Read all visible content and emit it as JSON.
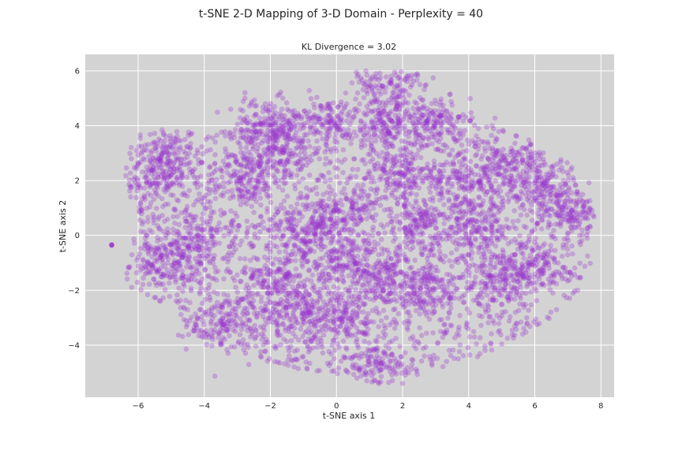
{
  "chart_data": {
    "type": "scatter",
    "suptitle": "t-SNE 2-D Mapping of 3-D Domain - Perplexity = 40",
    "title": "KL Divergence = 3.02",
    "xlabel": "t-SNE axis 1",
    "ylabel": "t-SNE axis 2",
    "xlim": [
      -7.6,
      8.4
    ],
    "ylim": [
      -5.9,
      6.6
    ],
    "xticks": [
      -6,
      -4,
      -2,
      0,
      2,
      4,
      6,
      8
    ],
    "yticks": [
      -4,
      -2,
      0,
      2,
      4,
      6
    ],
    "xtick_labels": [
      "−6",
      "−4",
      "−2",
      "0",
      "2",
      "4",
      "6",
      "8"
    ],
    "ytick_labels": [
      "−4",
      "−2",
      "0",
      "2",
      "4",
      "6"
    ],
    "grid": true,
    "background": "#d3d3d3",
    "point_color": "#9932cc",
    "point_alpha": 0.3,
    "cluster_centers": [
      {
        "x": -5.2,
        "y": 3.0
      },
      {
        "x": -5.6,
        "y": 2.0
      },
      {
        "x": -5.3,
        "y": -1.0
      },
      {
        "x": -4.2,
        "y": -0.3
      },
      {
        "x": -3.4,
        "y": -3.2
      },
      {
        "x": -2.2,
        "y": 4.0
      },
      {
        "x": -2.8,
        "y": 2.0
      },
      {
        "x": -1.8,
        "y": 3.0
      },
      {
        "x": -0.5,
        "y": 4.2
      },
      {
        "x": -1.0,
        "y": 0.2
      },
      {
        "x": -1.8,
        "y": -1.6
      },
      {
        "x": -1.2,
        "y": -2.8
      },
      {
        "x": 0.2,
        "y": -0.8
      },
      {
        "x": 0.2,
        "y": 0.8
      },
      {
        "x": 0.2,
        "y": -3.0
      },
      {
        "x": 1.5,
        "y": -1.5
      },
      {
        "x": 1.8,
        "y": 2.2
      },
      {
        "x": 1.5,
        "y": 4.0
      },
      {
        "x": 2.5,
        "y": 0.5
      },
      {
        "x": 2.8,
        "y": -2.0
      },
      {
        "x": 3.8,
        "y": 2.0
      },
      {
        "x": 4.2,
        "y": 0.2
      },
      {
        "x": 4.8,
        "y": -1.5
      },
      {
        "x": 5.2,
        "y": 2.5
      },
      {
        "x": 6.2,
        "y": 1.8
      },
      {
        "x": 7.2,
        "y": 0.8
      },
      {
        "x": 6.0,
        "y": -1.2
      },
      {
        "x": 1.3,
        "y": -4.8
      },
      {
        "x": 3.0,
        "y": 4.1
      },
      {
        "x": 1.6,
        "y": 5.5
      }
    ],
    "outliers": [
      {
        "x": -6.8,
        "y": -0.35
      },
      {
        "x": 0.6,
        "y": 5.95
      },
      {
        "x": 7.3,
        "y": -2.0
      },
      {
        "x": 7.6,
        "y": -0.75
      },
      {
        "x": -3.2,
        "y": 4.6
      },
      {
        "x": 5.4,
        "y": -3.3
      }
    ]
  }
}
